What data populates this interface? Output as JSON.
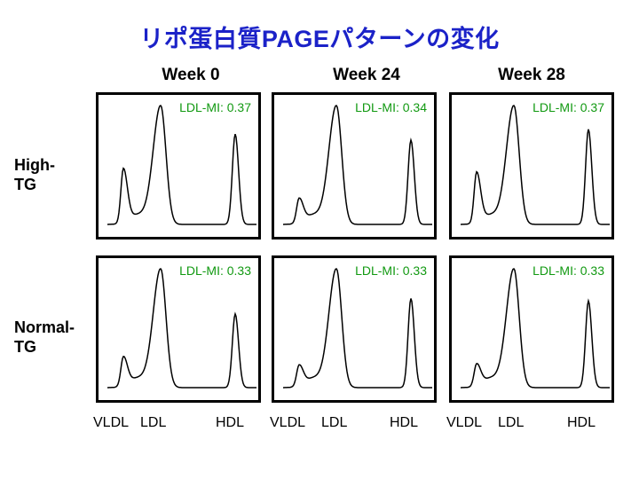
{
  "title": "リポ蛋白質PAGEパターンの変化",
  "columns": [
    "Week 0",
    "Week 24",
    "Week 28"
  ],
  "rows": [
    {
      "label_line1": "High-",
      "label_line2": "TG"
    },
    {
      "label_line1": "Normal-",
      "label_line2": "TG"
    }
  ],
  "x_labels": {
    "vldl": "VLDL",
    "ldl": "LDL",
    "hdl": "HDL"
  },
  "colors": {
    "title": "#1b22c8",
    "mi_text": "#119911",
    "curve": "#000000"
  },
  "chart_data": [
    {
      "type": "line",
      "row": "High-TG",
      "column": "Week 0",
      "annotation": "LDL-MI: 0.37",
      "peaks": [
        {
          "band": "VLDL",
          "relative_height": 0.45
        },
        {
          "band": "LDL",
          "relative_height": 1.0
        },
        {
          "band": "HDL",
          "relative_height": 0.76
        }
      ]
    },
    {
      "type": "line",
      "row": "High-TG",
      "column": "Week 24",
      "annotation": "LDL-MI: 0.34",
      "peaks": [
        {
          "band": "VLDL",
          "relative_height": 0.2
        },
        {
          "band": "LDL",
          "relative_height": 1.0
        },
        {
          "band": "HDL",
          "relative_height": 0.71
        }
      ]
    },
    {
      "type": "line",
      "row": "High-TG",
      "column": "Week 28",
      "annotation": "LDL-MI: 0.37",
      "peaks": [
        {
          "band": "VLDL",
          "relative_height": 0.42
        },
        {
          "band": "LDL",
          "relative_height": 1.0
        },
        {
          "band": "HDL",
          "relative_height": 0.8
        }
      ]
    },
    {
      "type": "line",
      "row": "Normal-TG",
      "column": "Week 0",
      "annotation": "LDL-MI: 0.33",
      "peaks": [
        {
          "band": "VLDL",
          "relative_height": 0.24
        },
        {
          "band": "LDL",
          "relative_height": 1.0
        },
        {
          "band": "HDL",
          "relative_height": 0.62
        }
      ]
    },
    {
      "type": "line",
      "row": "Normal-TG",
      "column": "Week 24",
      "annotation": "LDL-MI: 0.33",
      "peaks": [
        {
          "band": "VLDL",
          "relative_height": 0.17
        },
        {
          "band": "LDL",
          "relative_height": 1.0
        },
        {
          "band": "HDL",
          "relative_height": 0.75
        }
      ]
    },
    {
      "type": "line",
      "row": "Normal-TG",
      "column": "Week 28",
      "annotation": "LDL-MI: 0.33",
      "peaks": [
        {
          "band": "VLDL",
          "relative_height": 0.18
        },
        {
          "band": "LDL",
          "relative_height": 1.0
        },
        {
          "band": "HDL",
          "relative_height": 0.73
        }
      ]
    }
  ]
}
